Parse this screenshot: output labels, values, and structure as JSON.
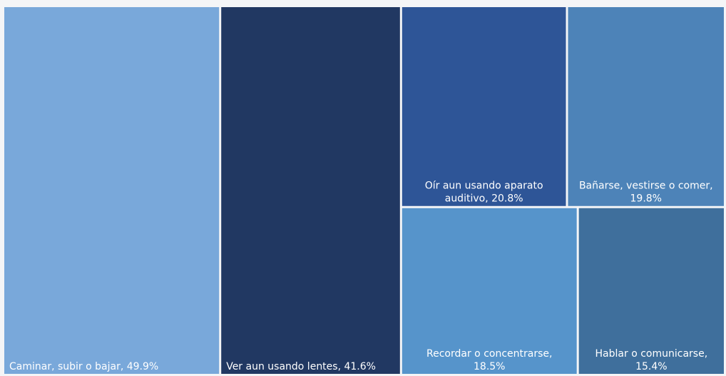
{
  "chart_data": {
    "type": "treemap",
    "title": "",
    "categories": [
      "Caminar, subir o bajar",
      "Ver aun usando lentes",
      "Oír aun usando aparato auditivo",
      "Bañarse, vestirse o comer",
      "Recordar o concentrarse",
      "Hablar o comunicarse"
    ],
    "values": [
      49.9,
      41.6,
      20.8,
      19.8,
      18.5,
      15.4
    ],
    "unit": "%",
    "labels": [
      [
        "Caminar, subir o bajar, 49.9%"
      ],
      [
        "Ver aun usando lentes, 41.6%"
      ],
      [
        "Oír aun usando aparato",
        "auditivo, 20.8%"
      ],
      [
        "Bañarse, vestirse o comer,",
        "19.8%"
      ],
      [
        "Recordar o concentrarse,",
        "18.5%"
      ],
      [
        "Hablar o comunicarse,",
        "15.4%"
      ]
    ],
    "colors": [
      "#79a8da",
      "#213862",
      "#2e5597",
      "#4d83b8",
      "#5694cb",
      "#3f6f9c"
    ],
    "label_align": [
      "left",
      "left",
      "center",
      "center",
      "center",
      "center"
    ],
    "legend": "none",
    "grid": false
  }
}
